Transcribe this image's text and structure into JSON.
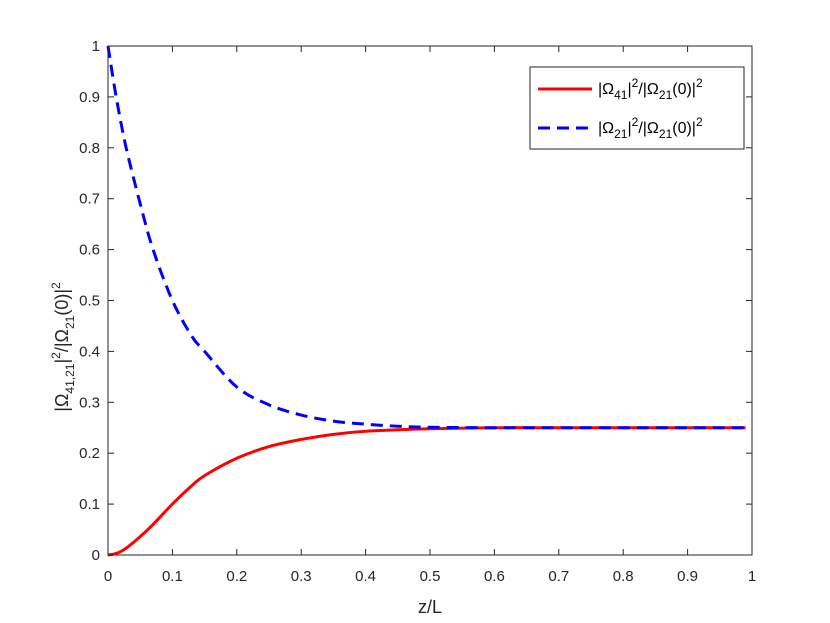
{
  "chart_data": {
    "type": "line",
    "xlabel": "z/L",
    "ylabel": {
      "prefix": "|Ω",
      "sub1": "41,21",
      "mid": "|",
      "sup1": "2",
      "mid2": "/|Ω",
      "sub2": "21",
      "suffix": "(0)|",
      "sup2": "2"
    },
    "xlim": [
      0,
      1
    ],
    "ylim": [
      0,
      1
    ],
    "x_ticks": [
      "0",
      "0.1",
      "0.2",
      "0.3",
      "0.4",
      "0.5",
      "0.6",
      "0.7",
      "0.8",
      "0.9",
      "1"
    ],
    "y_ticks": [
      "0",
      "0.1",
      "0.2",
      "0.3",
      "0.4",
      "0.5",
      "0.6",
      "0.7",
      "0.8",
      "0.9",
      "1"
    ],
    "grid": false,
    "legend_position": "top-right",
    "series": [
      {
        "legend": {
          "a": "|Ω",
          "sub1": "41",
          "b": "|",
          "sup1": "2",
          "c": "/|Ω",
          "sub2": "21",
          "d": "(0)|",
          "sup2": "2"
        },
        "color": "#ff0000",
        "style": "solid",
        "x": [
          0,
          0.01,
          0.02,
          0.03,
          0.05,
          0.07,
          0.1,
          0.13,
          0.15,
          0.2,
          0.25,
          0.3,
          0.35,
          0.4,
          0.45,
          0.5,
          0.6,
          0.7,
          0.8,
          0.9,
          0.99
        ],
        "y": [
          0,
          0.002,
          0.007,
          0.015,
          0.036,
          0.06,
          0.1,
          0.136,
          0.156,
          0.19,
          0.213,
          0.227,
          0.237,
          0.243,
          0.246,
          0.248,
          0.25,
          0.25,
          0.25,
          0.25,
          0.25
        ]
      },
      {
        "legend": {
          "a": "|Ω",
          "sub1": "21",
          "b": "|",
          "sup1": "2",
          "c": "/|Ω",
          "sub2": "21",
          "d": "(0)|",
          "sup2": "2"
        },
        "color": "#0000ff",
        "style": "dashed",
        "x": [
          0,
          0.01,
          0.02,
          0.03,
          0.05,
          0.07,
          0.1,
          0.13,
          0.15,
          0.2,
          0.25,
          0.3,
          0.35,
          0.4,
          0.45,
          0.5,
          0.6,
          0.7,
          0.8,
          0.9,
          0.99
        ],
        "y": [
          1,
          0.92,
          0.85,
          0.79,
          0.69,
          0.6,
          0.5,
          0.43,
          0.4,
          0.33,
          0.295,
          0.275,
          0.263,
          0.257,
          0.253,
          0.251,
          0.25,
          0.25,
          0.25,
          0.25,
          0.25
        ]
      }
    ]
  }
}
